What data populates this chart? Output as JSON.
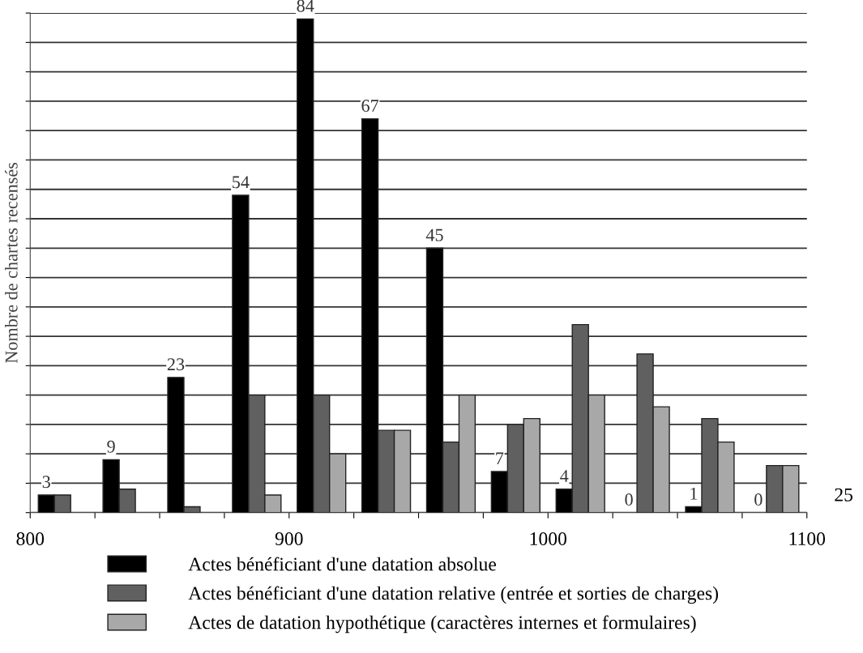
{
  "chart_data": {
    "type": "bar",
    "ylabel": "Nombre de chartes recensés",
    "x": [
      812.5,
      837.5,
      862.5,
      887.5,
      912.5,
      937.5,
      962.5,
      987.5,
      1012.5,
      1037.5,
      1062.5,
      1087.5
    ],
    "series": [
      {
        "name": "Actes bénéficiant d'une datation absolue",
        "color": "#000000",
        "values": [
          3,
          9,
          23,
          54,
          84,
          67,
          45,
          7,
          4,
          0,
          1,
          0
        ],
        "value_labels": [
          "3",
          "9",
          "23",
          "54",
          "84",
          "67",
          "45",
          "7",
          "4",
          "0",
          "1",
          "0"
        ]
      },
      {
        "name": "Actes bénéficiant d'une datation relative (entrée et sorties de charges)",
        "color": "#606060",
        "values": [
          3,
          4,
          1,
          20,
          20,
          14,
          12,
          15,
          32,
          27,
          16,
          8
        ]
      },
      {
        "name": "Actes de datation hypothétique (caractères internes et formulaires)",
        "color": "#a8a8a8",
        "values": [
          0,
          0,
          0,
          3,
          10,
          14,
          20,
          16,
          20,
          18,
          12,
          8
        ]
      }
    ],
    "xlim": [
      800,
      1100
    ],
    "xticks": [
      800,
      {
        "value": 825,
        "label": null
      },
      {
        "value": 850,
        "label": null
      },
      {
        "value": 875,
        "label": null
      },
      900,
      {
        "value": 925,
        "label": null
      },
      {
        "value": 950,
        "label": null
      },
      {
        "value": 975,
        "label": null
      },
      1000,
      {
        "value": 1025,
        "label": null
      },
      {
        "value": 1050,
        "label": null
      },
      {
        "value": 1075,
        "label": null
      },
      1100
    ],
    "ylim": [
      0,
      85
    ],
    "yticks": [
      {
        "value": 0,
        "label": null
      },
      {
        "value": 5,
        "label": null
      },
      {
        "value": 10,
        "label": null
      },
      {
        "value": 15,
        "label": null
      },
      {
        "value": 20,
        "label": null
      },
      {
        "value": 25,
        "label": null
      },
      {
        "value": 30,
        "label": null
      },
      {
        "value": 35,
        "label": null
      },
      {
        "value": 40,
        "label": null
      },
      {
        "value": 45,
        "label": null
      },
      {
        "value": 50,
        "label": null
      },
      {
        "value": 55,
        "label": null
      },
      {
        "value": 60,
        "label": null
      },
      {
        "value": 65,
        "label": null
      },
      {
        "value": 70,
        "label": null
      },
      {
        "value": 75,
        "label": null
      },
      {
        "value": 80,
        "label": null
      },
      {
        "value": 85,
        "label": null
      }
    ],
    "tick_labels": "x",
    "grid": "y",
    "legend": "bottom",
    "annotations": [
      "25"
    ]
  }
}
